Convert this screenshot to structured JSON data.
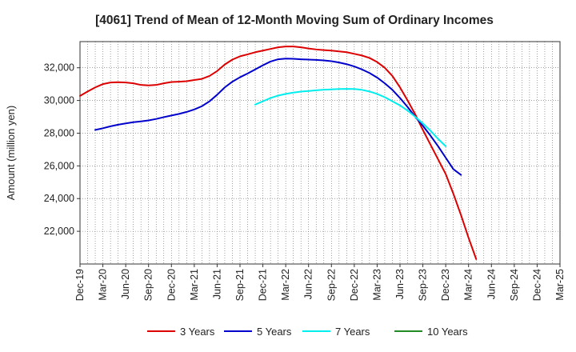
{
  "chart_data": {
    "type": "line",
    "title": "[4061]  Trend of Mean of 12-Month Moving Sum of Ordinary Incomes",
    "xlabel": "",
    "ylabel": "Amount (million yen)",
    "ylim": [
      20000,
      33600
    ],
    "yticks": [
      22000,
      24000,
      26000,
      28000,
      30000,
      32000
    ],
    "ytick_labels": [
      "22,000",
      "24,000",
      "26,000",
      "28,000",
      "30,000",
      "32,000"
    ],
    "x_start": "Dec-19",
    "x_end": "Mar-25",
    "x_tick_labels": [
      "Dec-19",
      "Mar-20",
      "Jun-20",
      "Sep-20",
      "Dec-20",
      "Mar-21",
      "Jun-21",
      "Sep-21",
      "Dec-21",
      "Mar-22",
      "Jun-22",
      "Sep-22",
      "Dec-22",
      "Mar-23",
      "Jun-23",
      "Sep-23",
      "Dec-23",
      "Mar-24",
      "Jun-24",
      "Sep-24",
      "Dec-24",
      "Mar-25"
    ],
    "grid": true,
    "legend_position": "bottom",
    "series": [
      {
        "name": "3 Years",
        "color": "#dd0000",
        "start_index": 0,
        "values": [
          30280,
          30550,
          30800,
          31000,
          31100,
          31120,
          31100,
          31050,
          30950,
          30920,
          30950,
          31050,
          31130,
          31150,
          31180,
          31250,
          31320,
          31500,
          31800,
          32200,
          32500,
          32700,
          32820,
          32950,
          33050,
          33150,
          33250,
          33300,
          33300,
          33250,
          33180,
          33120,
          33080,
          33050,
          33000,
          32950,
          32850,
          32750,
          32600,
          32350,
          32000,
          31500,
          30800,
          30000,
          29150,
          28200,
          27300,
          26400,
          25500,
          24300,
          23000,
          21600,
          20300
        ]
      },
      {
        "name": "5 Years",
        "color": "#0000cc",
        "start_index": 2,
        "values": [
          28200,
          28300,
          28420,
          28520,
          28600,
          28670,
          28720,
          28780,
          28870,
          28980,
          29080,
          29180,
          29300,
          29450,
          29650,
          29950,
          30350,
          30800,
          31150,
          31420,
          31650,
          31900,
          32150,
          32380,
          32520,
          32560,
          32550,
          32520,
          32500,
          32480,
          32450,
          32400,
          32320,
          32220,
          32080,
          31900,
          31680,
          31400,
          31050,
          30650,
          30150,
          29600,
          29000,
          28450,
          27850,
          27200,
          26500,
          25800,
          25450
        ]
      },
      {
        "name": "7 Years",
        "color": "#00eeee",
        "start_index": 23,
        "values": [
          29750,
          29950,
          30150,
          30300,
          30400,
          30480,
          30540,
          30580,
          30620,
          30660,
          30680,
          30700,
          30710,
          30700,
          30650,
          30550,
          30400,
          30200,
          29950,
          29700,
          29380,
          29000,
          28600,
          28150,
          27650,
          27200
        ]
      },
      {
        "name": "10 Years",
        "color": "#228b22",
        "start_index": 0,
        "values": []
      }
    ]
  }
}
